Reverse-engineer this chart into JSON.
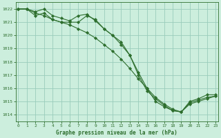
{
  "title": "Graphe pression niveau de la mer (hPa)",
  "background_color": "#cceedd",
  "grid_color": "#99ccbb",
  "line_color": "#2d6e2d",
  "marker_color": "#2d6e2d",
  "ylim": [
    1013.5,
    1022.5
  ],
  "xlim": [
    -0.3,
    23.3
  ],
  "yticks": [
    1014,
    1015,
    1016,
    1017,
    1018,
    1019,
    1020,
    1021,
    1022
  ],
  "xticks": [
    0,
    1,
    2,
    3,
    4,
    5,
    6,
    7,
    8,
    9,
    10,
    11,
    12,
    13,
    14,
    15,
    16,
    17,
    18,
    19,
    20,
    21,
    22,
    23
  ],
  "series1_x": [
    0,
    1,
    2,
    3,
    4,
    5,
    6,
    7,
    8,
    9,
    10,
    11,
    12,
    13,
    14,
    15,
    16,
    17,
    18,
    19,
    20,
    21,
    22,
    23
  ],
  "series1_y": [
    1022.0,
    1022.0,
    1021.8,
    1022.0,
    1021.5,
    1021.3,
    1021.1,
    1021.5,
    1021.6,
    1021.1,
    1020.5,
    1020.0,
    1019.3,
    1018.5,
    1017.2,
    1016.0,
    1015.0,
    1014.6,
    1014.3,
    1014.2,
    1014.9,
    1015.1,
    1015.3,
    1015.4
  ],
  "series2_x": [
    0,
    1,
    2,
    3,
    4,
    5,
    6,
    7,
    8,
    9,
    10,
    11,
    12,
    13,
    14,
    15,
    16,
    17,
    18,
    19,
    20,
    21,
    22,
    23
  ],
  "series2_y": [
    1022.0,
    1022.0,
    1021.5,
    1021.7,
    1021.2,
    1021.0,
    1021.0,
    1021.0,
    1021.5,
    1021.2,
    1020.5,
    1020.0,
    1019.5,
    1018.5,
    1017.0,
    1015.8,
    1015.2,
    1014.7,
    1014.3,
    1014.2,
    1015.0,
    1015.2,
    1015.5,
    1015.5
  ],
  "series3_x": [
    0,
    1,
    2,
    3,
    4,
    5,
    6,
    7,
    8,
    9,
    10,
    11,
    12,
    13,
    14,
    15,
    16,
    17,
    18,
    19,
    20,
    21,
    22,
    23
  ],
  "series3_y": [
    1022.0,
    1022.0,
    1021.7,
    1021.5,
    1021.2,
    1021.0,
    1020.8,
    1020.5,
    1020.2,
    1019.8,
    1019.3,
    1018.8,
    1018.2,
    1017.5,
    1016.7,
    1016.0,
    1015.3,
    1014.8,
    1014.4,
    1014.2,
    1014.8,
    1015.0,
    1015.2,
    1015.4
  ]
}
